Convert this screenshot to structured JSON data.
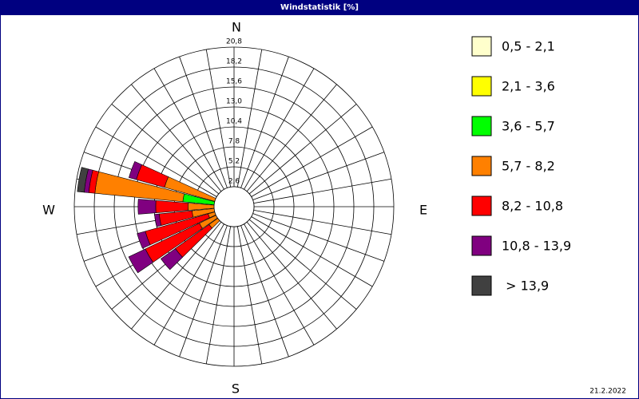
{
  "chart_data": {
    "type": "windrose",
    "title": "Windstatistik [%]",
    "compass": [
      "N",
      "E",
      "S",
      "W"
    ],
    "rlim": [
      0,
      20.8
    ],
    "rticks": [
      {
        "value": 2.6,
        "label": "2,6"
      },
      {
        "value": 5.2,
        "label": "5,2"
      },
      {
        "value": 7.8,
        "label": "7,8"
      },
      {
        "value": 10.4,
        "label": "10,4"
      },
      {
        "value": 13.0,
        "label": "13,0"
      },
      {
        "value": 15.6,
        "label": "15,6"
      },
      {
        "value": 18.2,
        "label": "18,2"
      },
      {
        "value": 20.8,
        "label": "20,8"
      }
    ],
    "series": [
      {
        "name": "0,5 - 2,1",
        "color": "#ffffcc",
        "values": [
          0,
          0,
          0,
          0,
          0,
          0,
          0,
          0,
          0,
          0,
          0,
          0,
          0,
          0,
          0,
          0,
          0,
          0,
          0,
          0,
          0,
          0,
          0,
          0.3,
          0.3,
          0.3,
          0.3,
          0.3,
          0.3,
          0.3,
          0,
          0,
          0,
          0,
          0,
          0
        ]
      },
      {
        "name": "2,1 - 3,6",
        "color": "#ffff00",
        "values": [
          0,
          0,
          0,
          0,
          0,
          0,
          0,
          0,
          0,
          0,
          0,
          0,
          0,
          0,
          0,
          0,
          0,
          0,
          0,
          0,
          0,
          0,
          0,
          0.4,
          0.4,
          0.4,
          0.4,
          0.4,
          0.4,
          0.4,
          0,
          0,
          0,
          0,
          0,
          0
        ]
      },
      {
        "name": "3,6 - 5,7",
        "color": "#00ff00",
        "values": [
          0,
          0,
          0,
          0,
          0,
          0,
          0,
          0,
          0,
          0,
          0,
          0,
          0,
          0,
          0,
          0,
          0,
          0,
          0,
          0,
          0,
          0,
          0,
          0.6,
          0.8,
          0.6,
          0.8,
          0.8,
          6.0,
          0.8,
          0,
          0,
          0,
          0,
          0,
          0
        ]
      },
      {
        "name": "5,7 - 8,2",
        "color": "#ff8000",
        "values": [
          0,
          0,
          0,
          0,
          0,
          0,
          0,
          0,
          0,
          0,
          0,
          0,
          0,
          0,
          0,
          0,
          0,
          0,
          0,
          0,
          0,
          0,
          0,
          2.7,
          3.5,
          2.2,
          4.0,
          4.5,
          11.5,
          7.9,
          0,
          0,
          0,
          0,
          0,
          0
        ]
      },
      {
        "name": "8,2 - 10,8",
        "color": "#ff0000",
        "values": [
          0,
          0,
          0,
          0,
          0,
          0,
          0,
          0,
          0,
          0,
          0,
          0,
          0,
          0,
          0,
          0,
          0,
          0,
          0,
          0,
          0,
          0,
          0,
          5.4,
          7.8,
          8.5,
          4.3,
          4.2,
          0.8,
          3.8,
          0,
          0,
          0,
          0,
          0,
          0
        ]
      },
      {
        "name": "10,8 - 13,9",
        "color": "#800080",
        "values": [
          0,
          0,
          0,
          0,
          0,
          0,
          0,
          0,
          0,
          0,
          0,
          0,
          0,
          0,
          0,
          0,
          0,
          0,
          0,
          0,
          0,
          0,
          0,
          2.3,
          2.4,
          1.1,
          0.6,
          2.3,
          0.6,
          1.0,
          0,
          0,
          0,
          0,
          0,
          0
        ]
      },
      {
        "name": " > 13,9",
        "color": "#404040",
        "values": [
          0,
          0,
          0,
          0,
          0,
          0,
          0,
          0,
          0,
          0,
          0,
          0,
          0,
          0,
          0,
          0,
          0,
          0,
          0,
          0,
          0,
          0,
          0,
          0,
          0,
          0,
          0,
          0,
          0.9,
          0,
          0,
          0,
          0,
          0,
          0,
          0
        ]
      }
    ],
    "date": "21.2.2022"
  }
}
